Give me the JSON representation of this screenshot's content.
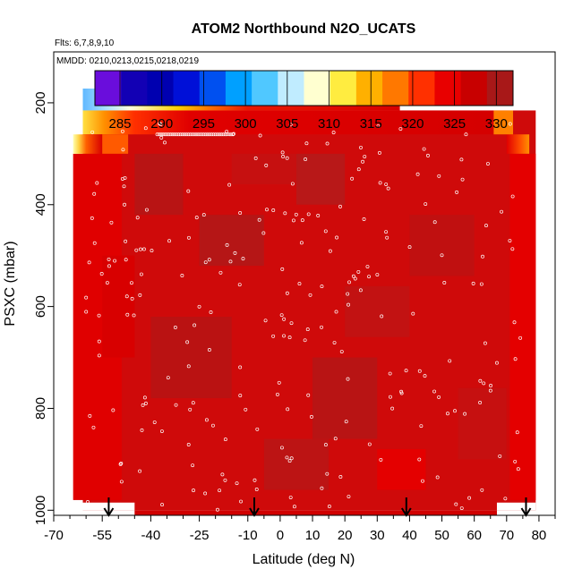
{
  "chart_data": {
    "type": "heatmap",
    "title": "ATOM2 Northbound N2O_UCATS",
    "subtitle_flights": "Flts: 6,7,8,9,10",
    "subtitle_dates": "MMDD: 0210,0213,0215,0218,0219",
    "xlabel": "Latitude (deg N)",
    "ylabel": "PSXC (mbar)",
    "xlim": [
      -70,
      85
    ],
    "ylim": [
      1010,
      100
    ],
    "y_inverted": true,
    "x_ticks": [
      -70,
      -55,
      -40,
      -25,
      -10,
      0,
      10,
      20,
      30,
      40,
      50,
      60,
      70,
      80
    ],
    "x_minor_ticks": [
      -65,
      -60,
      -50,
      -45,
      -35,
      -30,
      -20,
      -15,
      -5,
      5,
      15,
      25,
      35,
      45,
      55,
      65,
      75,
      85
    ],
    "y_ticks": [
      200,
      400,
      600,
      800,
      1000
    ],
    "colorbar": {
      "min": 282,
      "max": 332,
      "ticks": [
        285,
        290,
        295,
        300,
        305,
        310,
        315,
        320,
        325,
        330
      ],
      "colors": [
        "#6a0ddc",
        "#1200b4",
        "#0000b0",
        "#0010d8",
        "#0050f0",
        "#00a0ff",
        "#50c8ff",
        "#c0ecff",
        "#ffffd0",
        "#ffec40",
        "#ffb000",
        "#ff7800",
        "#ff3000",
        "#e80000",
        "#c80000",
        "#a81818"
      ]
    },
    "profile_markers_lat": [
      -53,
      -8,
      39,
      76
    ],
    "regions": [
      {
        "lat": [
          -61,
          37
        ],
        "p": [
          170,
          215
        ],
        "value_profile": "upper-gradient"
      },
      {
        "lat": [
          -60,
          37
        ],
        "p": [
          215,
          260
        ],
        "value": 323
      },
      {
        "lat": [
          -64,
          -37
        ],
        "p": [
          260,
          315
        ],
        "value": 314
      },
      {
        "lat": [
          -37,
          37
        ],
        "p": [
          215,
          980
        ],
        "value": 328
      },
      {
        "lat": [
          37,
          70
        ],
        "p": [
          215,
          980
        ],
        "value": 327
      },
      {
        "lat": [
          70,
          79
        ],
        "p": [
          215,
          300
        ],
        "value": 320
      },
      {
        "lat": [
          -64,
          79
        ],
        "p": [
          300,
          980
        ],
        "value": 328
      }
    ]
  }
}
